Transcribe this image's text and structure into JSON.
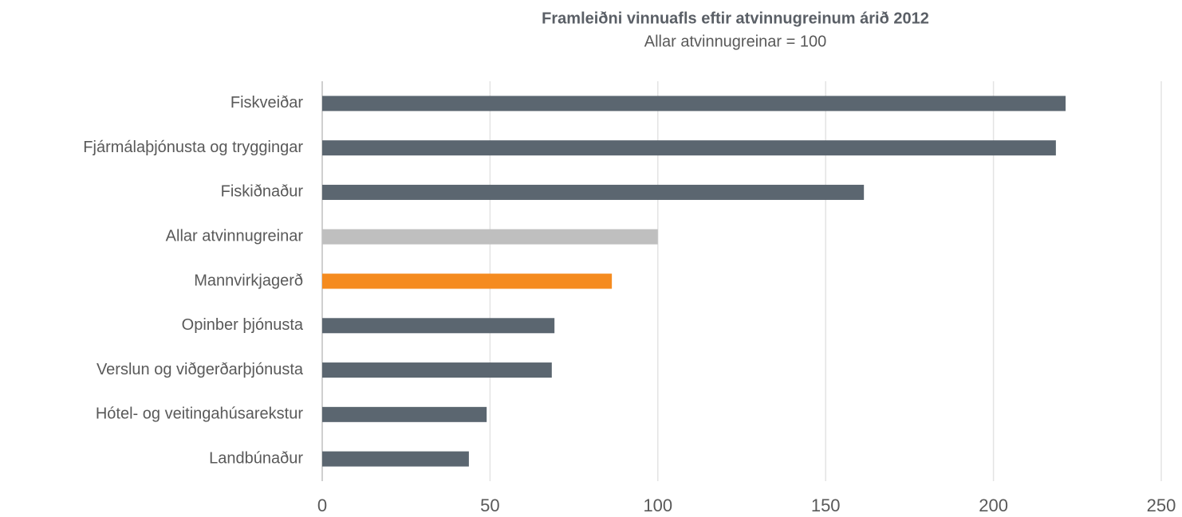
{
  "chart_data": {
    "type": "bar",
    "orientation": "horizontal",
    "title": "Framleiðni vinnuafls eftir atvinnugreinum árið 2012",
    "subtitle": "Allar atvinnugreinar = 100",
    "categories": [
      "Fiskveiðar",
      "Fjármálaþjónusta og tryggingar",
      "Fiskiðnaður",
      "Allar atvinnugreinar",
      "Mannvirkjagerð",
      "Opinber þjónusta",
      "Verslun og viðgerðarþjónusta",
      "Hótel- og veitingahúsarekstur",
      "Landbúnaður"
    ],
    "values": [
      221.5,
      218.6,
      161.4,
      100,
      86.3,
      69.2,
      68.4,
      49,
      43.7
    ],
    "colors": [
      "#5b6670",
      "#5b6670",
      "#5b6670",
      "#bfbfbf",
      "#f58b1f",
      "#5b6670",
      "#5b6670",
      "#5b6670",
      "#5b6670"
    ],
    "xlim": [
      0,
      250
    ],
    "xticks": [
      0,
      50,
      100,
      150,
      200,
      250
    ],
    "grid": true
  }
}
